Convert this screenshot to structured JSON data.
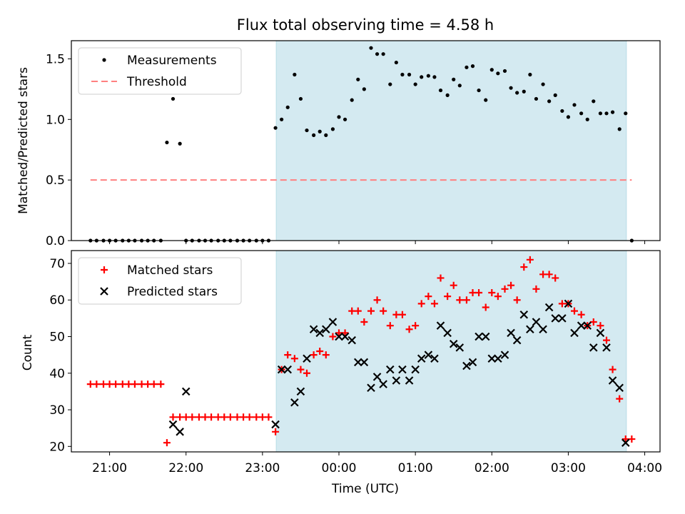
{
  "chart_data": {
    "title": "Flux total observing time = 4.58 h",
    "xlabel": "Time (UTC)",
    "x_unit": "hours since 00:00 UTC",
    "xlim": [
      -3.5,
      4.2
    ],
    "xticks": [
      {
        "value": -3,
        "label": "21:00"
      },
      {
        "value": -2,
        "label": "22:00"
      },
      {
        "value": -1,
        "label": "23:00"
      },
      {
        "value": 0,
        "label": "00:00"
      },
      {
        "value": 1,
        "label": "01:00"
      },
      {
        "value": 2,
        "label": "02:00"
      },
      {
        "value": 3,
        "label": "03:00"
      },
      {
        "value": 4,
        "label": "04:00"
      }
    ],
    "observing_window": {
      "start": -0.82,
      "end": 3.76,
      "color": "#d4eaf1"
    },
    "panels": [
      {
        "type": "scatter",
        "ylabel": "Matched/Predicted stars",
        "ylim": [
          0,
          1.65
        ],
        "yticks": [
          "0.0",
          "0.5",
          "1.0",
          "1.5"
        ],
        "threshold": {
          "name": "Threshold",
          "value": 0.5,
          "color": "#ff8080"
        },
        "legend": [
          "Measurements",
          "Threshold"
        ],
        "legend_position": "top-left",
        "series": [
          {
            "name": "Measurements",
            "marker": "dot",
            "color": "#000000",
            "x": [
              -3.25,
              -3.17,
              -3.08,
              -3.0,
              -2.92,
              -2.83,
              -2.75,
              -2.67,
              -2.58,
              -2.5,
              -2.42,
              -2.33,
              -2.25,
              -2.17,
              -2.08,
              -2.0,
              -1.92,
              -1.83,
              -1.75,
              -1.67,
              -1.58,
              -1.5,
              -1.42,
              -1.33,
              -1.25,
              -1.17,
              -1.08,
              -1.0,
              -0.92,
              -0.83,
              -0.75,
              -0.67,
              -0.58,
              -0.5,
              -0.42,
              -0.33,
              -0.25,
              -0.17,
              -0.08,
              0.0,
              0.08,
              0.17,
              0.25,
              0.33,
              0.42,
              0.5,
              0.58,
              0.67,
              0.75,
              0.83,
              0.92,
              1.0,
              1.08,
              1.17,
              1.25,
              1.33,
              1.42,
              1.5,
              1.58,
              1.67,
              1.75,
              1.83,
              1.92,
              2.0,
              2.08,
              2.17,
              2.25,
              2.33,
              2.42,
              2.5,
              2.58,
              2.67,
              2.75,
              2.83,
              2.92,
              3.0,
              3.08,
              3.17,
              3.25,
              3.33,
              3.42,
              3.5,
              3.58,
              3.67,
              3.75,
              3.83
            ],
            "y": [
              0,
              0,
              0,
              0,
              0,
              0,
              0,
              0,
              0,
              0,
              0,
              0,
              0.81,
              1.17,
              0.8,
              0,
              0,
              0,
              0,
              0,
              0,
              0,
              0,
              0,
              0,
              0,
              0,
              0,
              0,
              0.93,
              1.0,
              1.1,
              1.37,
              1.17,
              0.91,
              0.87,
              0.9,
              0.87,
              0.92,
              1.02,
              1.0,
              1.16,
              1.33,
              1.25,
              1.59,
              1.54,
              1.54,
              1.29,
              1.47,
              1.37,
              1.37,
              1.29,
              1.35,
              1.36,
              1.35,
              1.24,
              1.2,
              1.33,
              1.28,
              1.43,
              1.44,
              1.24,
              1.16,
              1.41,
              1.38,
              1.4,
              1.26,
              1.22,
              1.23,
              1.37,
              1.17,
              1.29,
              1.15,
              1.2,
              1.07,
              1.02,
              1.12,
              1.05,
              1.0,
              1.15,
              1.05,
              1.05,
              1.06,
              0.92,
              1.05,
              0.0
            ]
          }
        ]
      },
      {
        "type": "scatter",
        "ylabel": "Count",
        "ylim": [
          18.5,
          73.5
        ],
        "yticks": [
          "20",
          "30",
          "40",
          "50",
          "60",
          "70"
        ],
        "legend": [
          "Matched stars",
          "Predicted stars"
        ],
        "legend_position": "top-left",
        "series": [
          {
            "name": "Matched stars",
            "marker": "plus",
            "color": "#ff0000",
            "x": [
              -3.25,
              -3.17,
              -3.08,
              -3.0,
              -2.92,
              -2.83,
              -2.75,
              -2.67,
              -2.58,
              -2.5,
              -2.42,
              -2.33,
              -2.25,
              -2.17,
              -2.08,
              -2.0,
              -1.92,
              -1.83,
              -1.75,
              -1.67,
              -1.58,
              -1.5,
              -1.42,
              -1.33,
              -1.25,
              -1.17,
              -1.08,
              -1.0,
              -0.92,
              -0.83,
              -0.75,
              -0.67,
              -0.58,
              -0.5,
              -0.42,
              -0.33,
              -0.25,
              -0.17,
              -0.08,
              0.0,
              0.08,
              0.17,
              0.25,
              0.33,
              0.42,
              0.5,
              0.58,
              0.67,
              0.75,
              0.83,
              0.92,
              1.0,
              1.08,
              1.17,
              1.25,
              1.33,
              1.42,
              1.5,
              1.58,
              1.67,
              1.75,
              1.83,
              1.92,
              2.0,
              2.08,
              2.17,
              2.25,
              2.33,
              2.42,
              2.5,
              2.58,
              2.67,
              2.75,
              2.83,
              2.92,
              3.0,
              3.08,
              3.17,
              3.25,
              3.33,
              3.42,
              3.5,
              3.58,
              3.67,
              3.75,
              3.83
            ],
            "y": [
              37,
              37,
              37,
              37,
              37,
              37,
              37,
              37,
              37,
              37,
              37,
              37,
              21,
              28,
              28,
              28,
              28,
              28,
              28,
              28,
              28,
              28,
              28,
              28,
              28,
              28,
              28,
              28,
              28,
              24,
              41,
              45,
              44,
              41,
              40,
              45,
              46,
              45,
              50,
              51,
              51,
              57,
              57,
              54,
              57,
              60,
              57,
              53,
              56,
              56,
              52,
              53,
              59,
              61,
              59,
              66,
              61,
              64,
              60,
              60,
              62,
              62,
              58,
              62,
              61,
              63,
              64,
              60,
              69,
              71,
              63,
              67,
              67,
              66,
              59,
              59,
              57,
              56,
              53,
              54,
              53,
              49,
              41,
              33,
              22,
              22
            ]
          },
          {
            "name": "Predicted stars",
            "marker": "x",
            "color": "#000000",
            "x": [
              -2.17,
              -2.08,
              -2.0,
              -0.83,
              -0.75,
              -0.67,
              -0.58,
              -0.5,
              -0.42,
              -0.33,
              -0.25,
              -0.17,
              -0.08,
              0.0,
              0.08,
              0.17,
              0.25,
              0.33,
              0.42,
              0.5,
              0.58,
              0.67,
              0.75,
              0.83,
              0.92,
              1.0,
              1.08,
              1.17,
              1.25,
              1.33,
              1.42,
              1.5,
              1.58,
              1.67,
              1.75,
              1.83,
              1.92,
              2.0,
              2.08,
              2.17,
              2.25,
              2.33,
              2.42,
              2.5,
              2.58,
              2.67,
              2.75,
              2.83,
              2.92,
              3.0,
              3.08,
              3.17,
              3.25,
              3.33,
              3.42,
              3.5,
              3.58,
              3.67,
              3.75
            ],
            "y": [
              26,
              24,
              35,
              26,
              41,
              41,
              32,
              35,
              44,
              52,
              51,
              52,
              54,
              50,
              50,
              49,
              43,
              43,
              36,
              39,
              37,
              41,
              38,
              41,
              38,
              41,
              44,
              45,
              44,
              53,
              51,
              48,
              47,
              42,
              43,
              50,
              50,
              44,
              44,
              45,
              51,
              49,
              56,
              52,
              54,
              52,
              58,
              55,
              55,
              59,
              51,
              53,
              53,
              47,
              51,
              47,
              38,
              36,
              21
            ]
          }
        ]
      }
    ]
  }
}
